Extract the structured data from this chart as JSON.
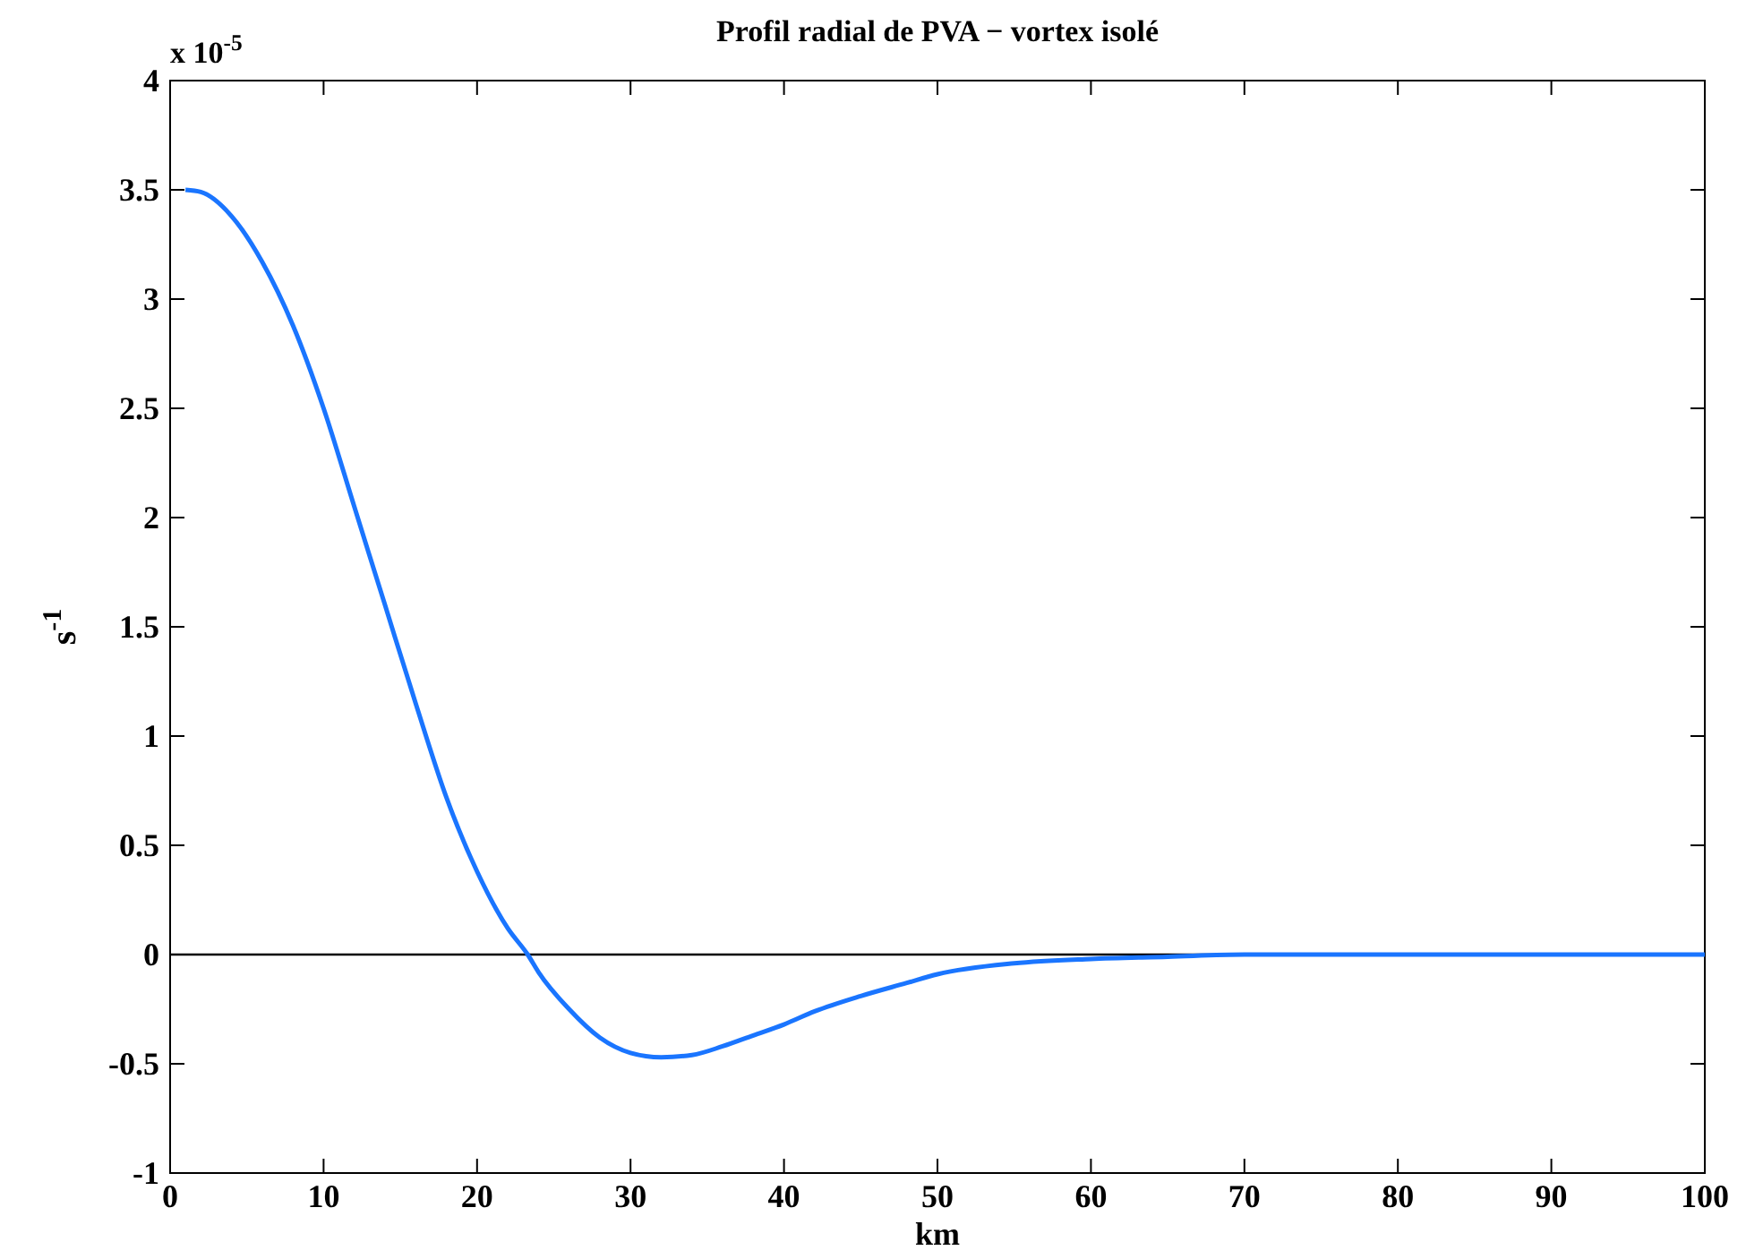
{
  "chart_data": {
    "type": "line",
    "title": "Profil radial de PVA − vortex isolé",
    "xlabel": "km",
    "ylabel": "s$^{-1}$",
    "annotations": [
      "x 10$^{-5}$"
    ],
    "x": [
      1,
      2,
      4,
      6,
      8,
      10,
      12,
      14,
      16,
      18,
      20,
      22,
      23.3,
      24,
      26,
      28,
      30,
      32,
      34,
      36,
      38,
      40,
      42,
      45,
      48,
      50,
      55,
      60,
      65,
      70,
      80,
      90,
      100
    ],
    "series": [
      {
        "color": "#1a75ff",
        "values": [
          3.5,
          3.49,
          3.38,
          3.17,
          2.88,
          2.5,
          2.05,
          1.6,
          1.15,
          0.72,
          0.38,
          0.12,
          0,
          -0.08,
          -0.25,
          -0.38,
          -0.45,
          -0.47,
          -0.46,
          -0.42,
          -0.37,
          -0.32,
          -0.26,
          -0.19,
          -0.13,
          -0.09,
          -0.04,
          -0.02,
          -0.01,
          0,
          0,
          0,
          0
        ]
      }
    ],
    "xlim": [
      0,
      100
    ],
    "xticks": [
      0,
      10,
      20,
      30,
      40,
      50,
      60,
      70,
      80,
      90,
      100
    ],
    "ylim": [
      -1,
      4
    ],
    "yticks": [
      -1,
      -0.5,
      0,
      0.5,
      1,
      1.5,
      2,
      2.5,
      3,
      3.5,
      4
    ],
    "ref_lines": [
      {
        "axis": "y",
        "value": 0,
        "color": "#000000"
      }
    ],
    "marker": "none",
    "line_style": "solid"
  }
}
